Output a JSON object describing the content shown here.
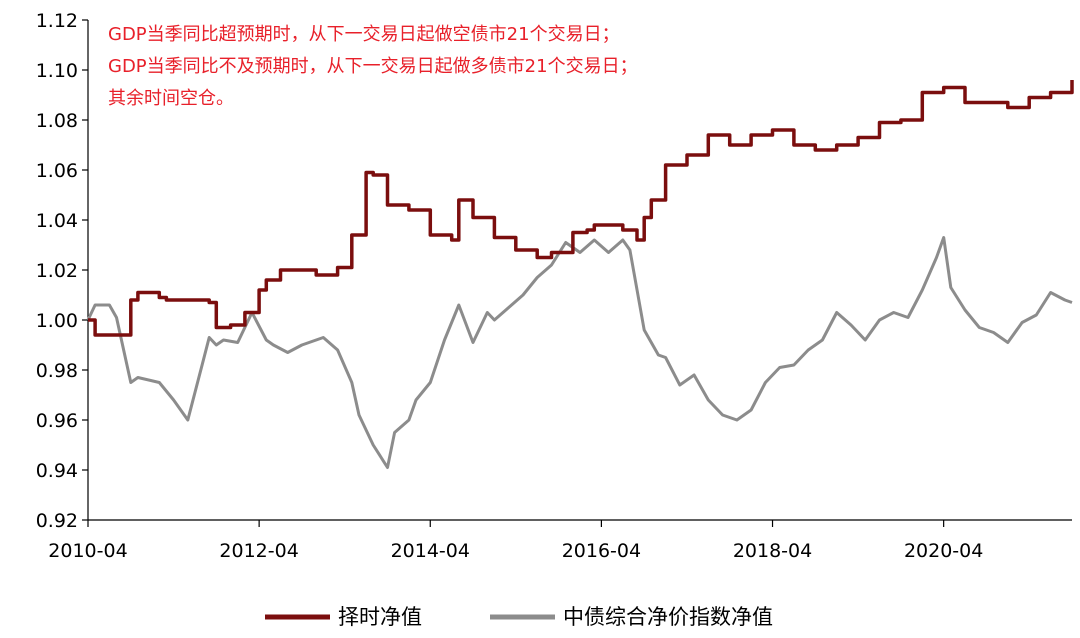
{
  "chart_data": {
    "type": "line",
    "title": "",
    "xlabel": "",
    "ylabel": "",
    "xlim": [
      "2010-04",
      "2021-10"
    ],
    "ylim": [
      0.92,
      1.12
    ],
    "grid": false,
    "legend_position": "bottom",
    "y_ticks": [
      "0.92",
      "0.94",
      "0.96",
      "0.98",
      "1.00",
      "1.02",
      "1.04",
      "1.06",
      "1.08",
      "1.10",
      "1.12"
    ],
    "x_ticks": [
      "2010-04",
      "2012-04",
      "2014-04",
      "2016-04",
      "2018-04",
      "2020-04"
    ],
    "annotation_lines": [
      "GDP当季同比超预期时，从下一交易日起做空债市21个交易日；",
      "GDP当季同比不及预期时，从下一交易日起做多债市21个交易日；",
      "其余时间空仓。"
    ],
    "colors": {
      "timing": "#7b0e0e",
      "index": "#8c8c8c",
      "annotation": "#e8202a"
    },
    "series": [
      {
        "name": "择时净值",
        "x": [
          "2010-04",
          "2010-05",
          "2010-07",
          "2010-10",
          "2010-11",
          "2011-02",
          "2011-03",
          "2011-06",
          "2011-09",
          "2011-10",
          "2011-12",
          "2012-02",
          "2012-04",
          "2012-05",
          "2012-07",
          "2012-09",
          "2012-12",
          "2013-03",
          "2013-05",
          "2013-07",
          "2013-08",
          "2013-10",
          "2014-01",
          "2014-04",
          "2014-07",
          "2014-08",
          "2014-10",
          "2015-01",
          "2015-04",
          "2015-07",
          "2015-09",
          "2015-12",
          "2016-02",
          "2016-03",
          "2016-07",
          "2016-09",
          "2016-10",
          "2016-11",
          "2017-01",
          "2017-04",
          "2017-07",
          "2017-10",
          "2018-01",
          "2018-04",
          "2018-07",
          "2018-10",
          "2019-01",
          "2019-04",
          "2019-07",
          "2019-10",
          "2020-01",
          "2020-04",
          "2020-07",
          "2020-10",
          "2021-01",
          "2021-04",
          "2021-07",
          "2021-10"
        ],
        "values": [
          1.0,
          0.994,
          0.994,
          1.008,
          1.011,
          1.009,
          1.008,
          1.008,
          1.007,
          0.997,
          0.998,
          1.003,
          1.012,
          1.016,
          1.02,
          1.02,
          1.018,
          1.021,
          1.034,
          1.059,
          1.058,
          1.046,
          1.044,
          1.034,
          1.032,
          1.048,
          1.041,
          1.033,
          1.028,
          1.025,
          1.027,
          1.035,
          1.036,
          1.038,
          1.036,
          1.032,
          1.041,
          1.048,
          1.062,
          1.066,
          1.074,
          1.07,
          1.074,
          1.076,
          1.07,
          1.068,
          1.07,
          1.073,
          1.079,
          1.08,
          1.091,
          1.093,
          1.087,
          1.087,
          1.085,
          1.089,
          1.091,
          1.096
        ]
      },
      {
        "name": "中债综合净价指数净值",
        "x": [
          "2010-04",
          "2010-05",
          "2010-07",
          "2010-08",
          "2010-10",
          "2010-11",
          "2011-02",
          "2011-04",
          "2011-06",
          "2011-08",
          "2011-09",
          "2011-10",
          "2011-11",
          "2012-01",
          "2012-03",
          "2012-05",
          "2012-06",
          "2012-08",
          "2012-10",
          "2013-01",
          "2013-03",
          "2013-05",
          "2013-06",
          "2013-08",
          "2013-10",
          "2013-11",
          "2014-01",
          "2014-02",
          "2014-04",
          "2014-06",
          "2014-08",
          "2014-10",
          "2014-12",
          "2015-01",
          "2015-03",
          "2015-05",
          "2015-07",
          "2015-09",
          "2015-11",
          "2016-01",
          "2016-03",
          "2016-05",
          "2016-07",
          "2016-08",
          "2016-10",
          "2016-12",
          "2017-01",
          "2017-03",
          "2017-05",
          "2017-07",
          "2017-09",
          "2017-11",
          "2018-01",
          "2018-03",
          "2018-05",
          "2018-07",
          "2018-09",
          "2018-11",
          "2019-01",
          "2019-03",
          "2019-05",
          "2019-07",
          "2019-09",
          "2019-11",
          "2020-01",
          "2020-03",
          "2020-04",
          "2020-05",
          "2020-07",
          "2020-09",
          "2020-11",
          "2021-01",
          "2021-03",
          "2021-05",
          "2021-07",
          "2021-09",
          "2021-10"
        ],
        "values": [
          1.0,
          1.006,
          1.006,
          1.001,
          0.975,
          0.977,
          0.975,
          0.968,
          0.96,
          0.982,
          0.993,
          0.99,
          0.992,
          0.991,
          1.003,
          0.992,
          0.99,
          0.987,
          0.99,
          0.993,
          0.988,
          0.975,
          0.962,
          0.95,
          0.941,
          0.955,
          0.96,
          0.968,
          0.975,
          0.992,
          1.006,
          0.991,
          1.003,
          1.0,
          1.005,
          1.01,
          1.017,
          1.022,
          1.031,
          1.027,
          1.032,
          1.027,
          1.032,
          1.028,
          0.996,
          0.986,
          0.985,
          0.974,
          0.978,
          0.968,
          0.962,
          0.96,
          0.964,
          0.975,
          0.981,
          0.982,
          0.988,
          0.992,
          1.003,
          0.998,
          0.992,
          1.0,
          1.003,
          1.001,
          1.012,
          1.025,
          1.033,
          1.013,
          1.004,
          0.997,
          0.995,
          0.991,
          0.999,
          1.002,
          1.011,
          1.008,
          1.007
        ]
      }
    ]
  }
}
